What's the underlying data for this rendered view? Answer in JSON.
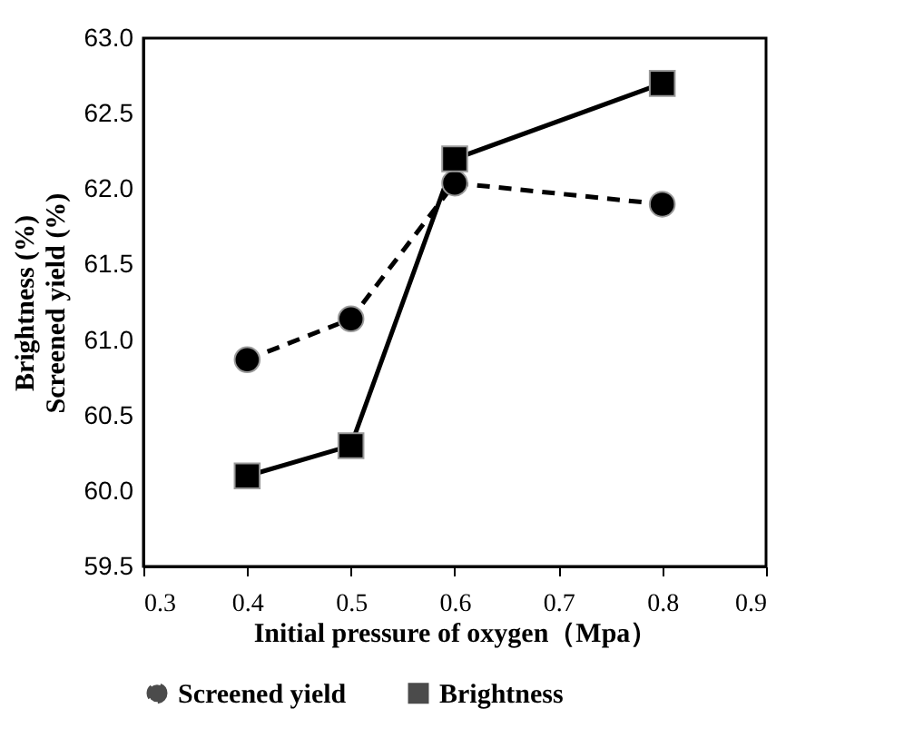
{
  "chart_data": {
    "type": "line",
    "xlabel": "Initial pressure of oxygen（Mpa）",
    "ylabel": "Brightness (%)\nScreened yield (%)",
    "x": [
      0.4,
      0.5,
      0.6,
      0.8
    ],
    "series": [
      {
        "name": "Screened yield",
        "color": "#000000",
        "values": [
          60.87,
          61.14,
          62.04,
          61.9
        ],
        "marker": "circle",
        "line_style": "dashed"
      },
      {
        "name": "Brightness",
        "color": "#000000",
        "values": [
          60.1,
          60.3,
          62.2,
          62.7
        ],
        "marker": "square",
        "line_style": "solid"
      }
    ],
    "xlim": [
      0.3,
      0.9
    ],
    "xticks": [
      0.3,
      0.4,
      0.5,
      0.6,
      0.7,
      0.8,
      0.9
    ],
    "ylim": [
      59.5,
      63.0
    ],
    "yticks": [
      {
        "value": 59.5,
        "label": "59.5"
      },
      {
        "value": 60.0,
        "label": "60.0"
      },
      {
        "value": 60.5,
        "label": "60.5"
      },
      {
        "value": 61.0,
        "label": "61.0"
      },
      {
        "value": 61.5,
        "label": "61.5"
      },
      {
        "value": 62.0,
        "label": "62.0"
      },
      {
        "value": 62.5,
        "label": "62.5"
      },
      {
        "value": 63.0,
        "label": "63.0"
      }
    ],
    "grid": false,
    "legend": "bottom"
  }
}
